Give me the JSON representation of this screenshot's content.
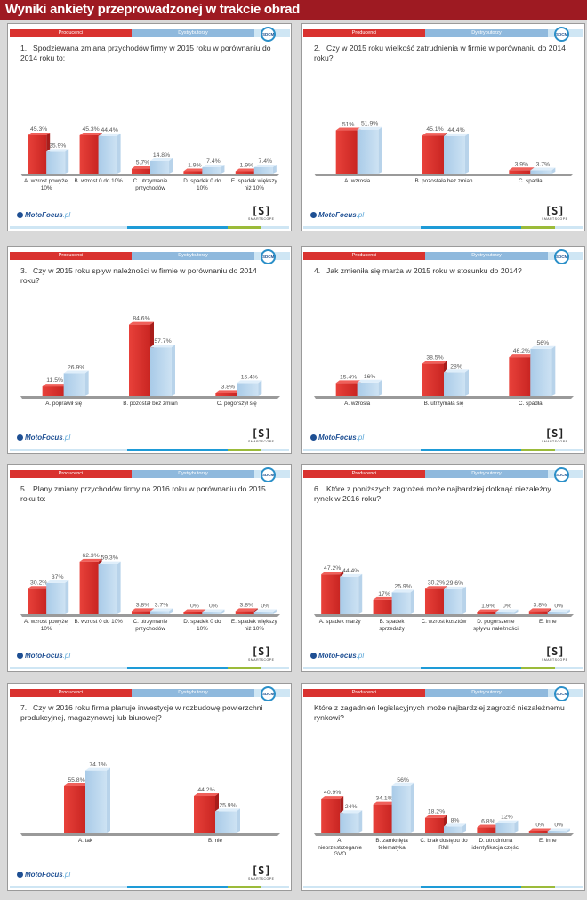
{
  "page_title": "Wyniki ankiety przeprowadzonej w trakcie obrad",
  "legend": {
    "producers": "Producenci",
    "distributors": "Dystrybutorzy"
  },
  "logos": {
    "sdcm": "SDCM",
    "motofocus": "MotoFocus",
    "motofocus_suffix": ".pl",
    "smartscope": "[S]",
    "smartscope_text": "SMARTSCOPE"
  },
  "colors": {
    "producers": "#d9322f",
    "distributors": "#8fb9dd",
    "title_bar": "#9e1a22"
  },
  "chart_data": [
    {
      "type": "bar",
      "number": "1.",
      "title": "Spodziewana zmiana przychodów firmy w 2015 roku w porównaniu do 2014 roku to:",
      "categories": [
        "A. wzrost powyżej 10%",
        "B. wzrost 0 do 10%",
        "C. utrzymanie przychodów",
        "D. spadek 0 do 10%",
        "E. spadek większy niż 10%"
      ],
      "series": [
        {
          "name": "Producenci",
          "values": [
            45.3,
            45.3,
            5.7,
            1.9,
            1.9
          ]
        },
        {
          "name": "Dystrybutorzy",
          "values": [
            25.9,
            44.4,
            14.8,
            7.4,
            7.4
          ]
        }
      ],
      "footer": true
    },
    {
      "type": "bar",
      "number": "2.",
      "title": "Czy w 2015 roku wielkość zatrudnienia w firmie w porównaniu do 2014 roku?",
      "categories": [
        "A. wzrosła",
        "B. pozostała bez zmian",
        "C. spadła"
      ],
      "series": [
        {
          "name": "Producenci",
          "values": [
            51,
            45.1,
            3.9
          ]
        },
        {
          "name": "Dystrybutorzy",
          "values": [
            51.9,
            44.4,
            3.7
          ]
        }
      ],
      "footer": true
    },
    {
      "type": "bar",
      "number": "3.",
      "title": "Czy w 2015 roku spływ należności w firmie w porównaniu do 2014 roku?",
      "categories": [
        "A. poprawił się",
        "B. pozostał bez zmian",
        "C. pogorszył się"
      ],
      "series": [
        {
          "name": "Producenci",
          "values": [
            11.5,
            84.6,
            3.8
          ]
        },
        {
          "name": "Dystrybutorzy",
          "values": [
            26.9,
            57.7,
            15.4
          ]
        }
      ],
      "footer": true
    },
    {
      "type": "bar",
      "number": "4.",
      "title": "Jak zmieniła się marża w 2015 roku w stosunku do 2014?",
      "categories": [
        "A. wzrosła",
        "B. utrzymała się",
        "C. spadła"
      ],
      "series": [
        {
          "name": "Producenci",
          "values": [
            15.4,
            38.5,
            46.2
          ]
        },
        {
          "name": "Dystrybutorzy",
          "values": [
            16,
            28,
            56
          ]
        }
      ],
      "footer": true
    },
    {
      "type": "bar",
      "number": "5.",
      "title": "Plany zmiany przychodów firmy na 2016 roku w porównaniu do 2015 roku to:",
      "categories": [
        "A. wzrost powyżej 10%",
        "B. wzrost 0 do 10%",
        "C. utrzymanie przychodów",
        "D. spadek 0 do 10%",
        "E. spadek większy niż 10%"
      ],
      "series": [
        {
          "name": "Producenci",
          "values": [
            30.2,
            62.3,
            3.8,
            0,
            3.8
          ]
        },
        {
          "name": "Dystrybutorzy",
          "values": [
            37,
            59.3,
            3.7,
            0,
            0
          ]
        }
      ],
      "footer": true
    },
    {
      "type": "bar",
      "number": "6.",
      "title": "Które z poniższych zagrożeń może najbardziej dotknąć niezależny rynek w 2016 roku?",
      "categories": [
        "A. spadek marży",
        "B. spadek sprzedaży",
        "C. wzrost kosztów",
        "D. pogorszenie spływu należności",
        "E. inne"
      ],
      "series": [
        {
          "name": "Producenci",
          "values": [
            47.2,
            17,
            30.2,
            1.9,
            3.8
          ]
        },
        {
          "name": "Dystrybutorzy",
          "values": [
            44.4,
            25.9,
            29.6,
            0,
            0
          ]
        }
      ],
      "footer": true
    },
    {
      "type": "bar",
      "number": "7.",
      "title": "Czy w 2016 roku firma planuje inwestycje w rozbudowę powierzchni produkcyjnej, magazynowej lub biurowej?",
      "categories": [
        "A. tak",
        "B. nie"
      ],
      "series": [
        {
          "name": "Producenci",
          "values": [
            55.8,
            44.2
          ]
        },
        {
          "name": "Dystrybutorzy",
          "values": [
            74.1,
            25.9
          ]
        }
      ],
      "footer": true
    },
    {
      "type": "bar",
      "number": "",
      "title": "Które z zagadnień legislacyjnych może najbardziej zagrozić niezależnemu rynkowi?",
      "categories": [
        "A. nieprzestrzeganie GVO",
        "B. zamknięta telematyka",
        "C. brak dostępu do RMI",
        "D. utrudniona identyfikacja części",
        "E. inne"
      ],
      "series": [
        {
          "name": "Producenci",
          "values": [
            40.9,
            34.1,
            18.2,
            6.8,
            0
          ]
        },
        {
          "name": "Dystrybutorzy",
          "values": [
            24,
            56,
            8,
            12,
            0
          ]
        }
      ],
      "footer": false
    }
  ]
}
